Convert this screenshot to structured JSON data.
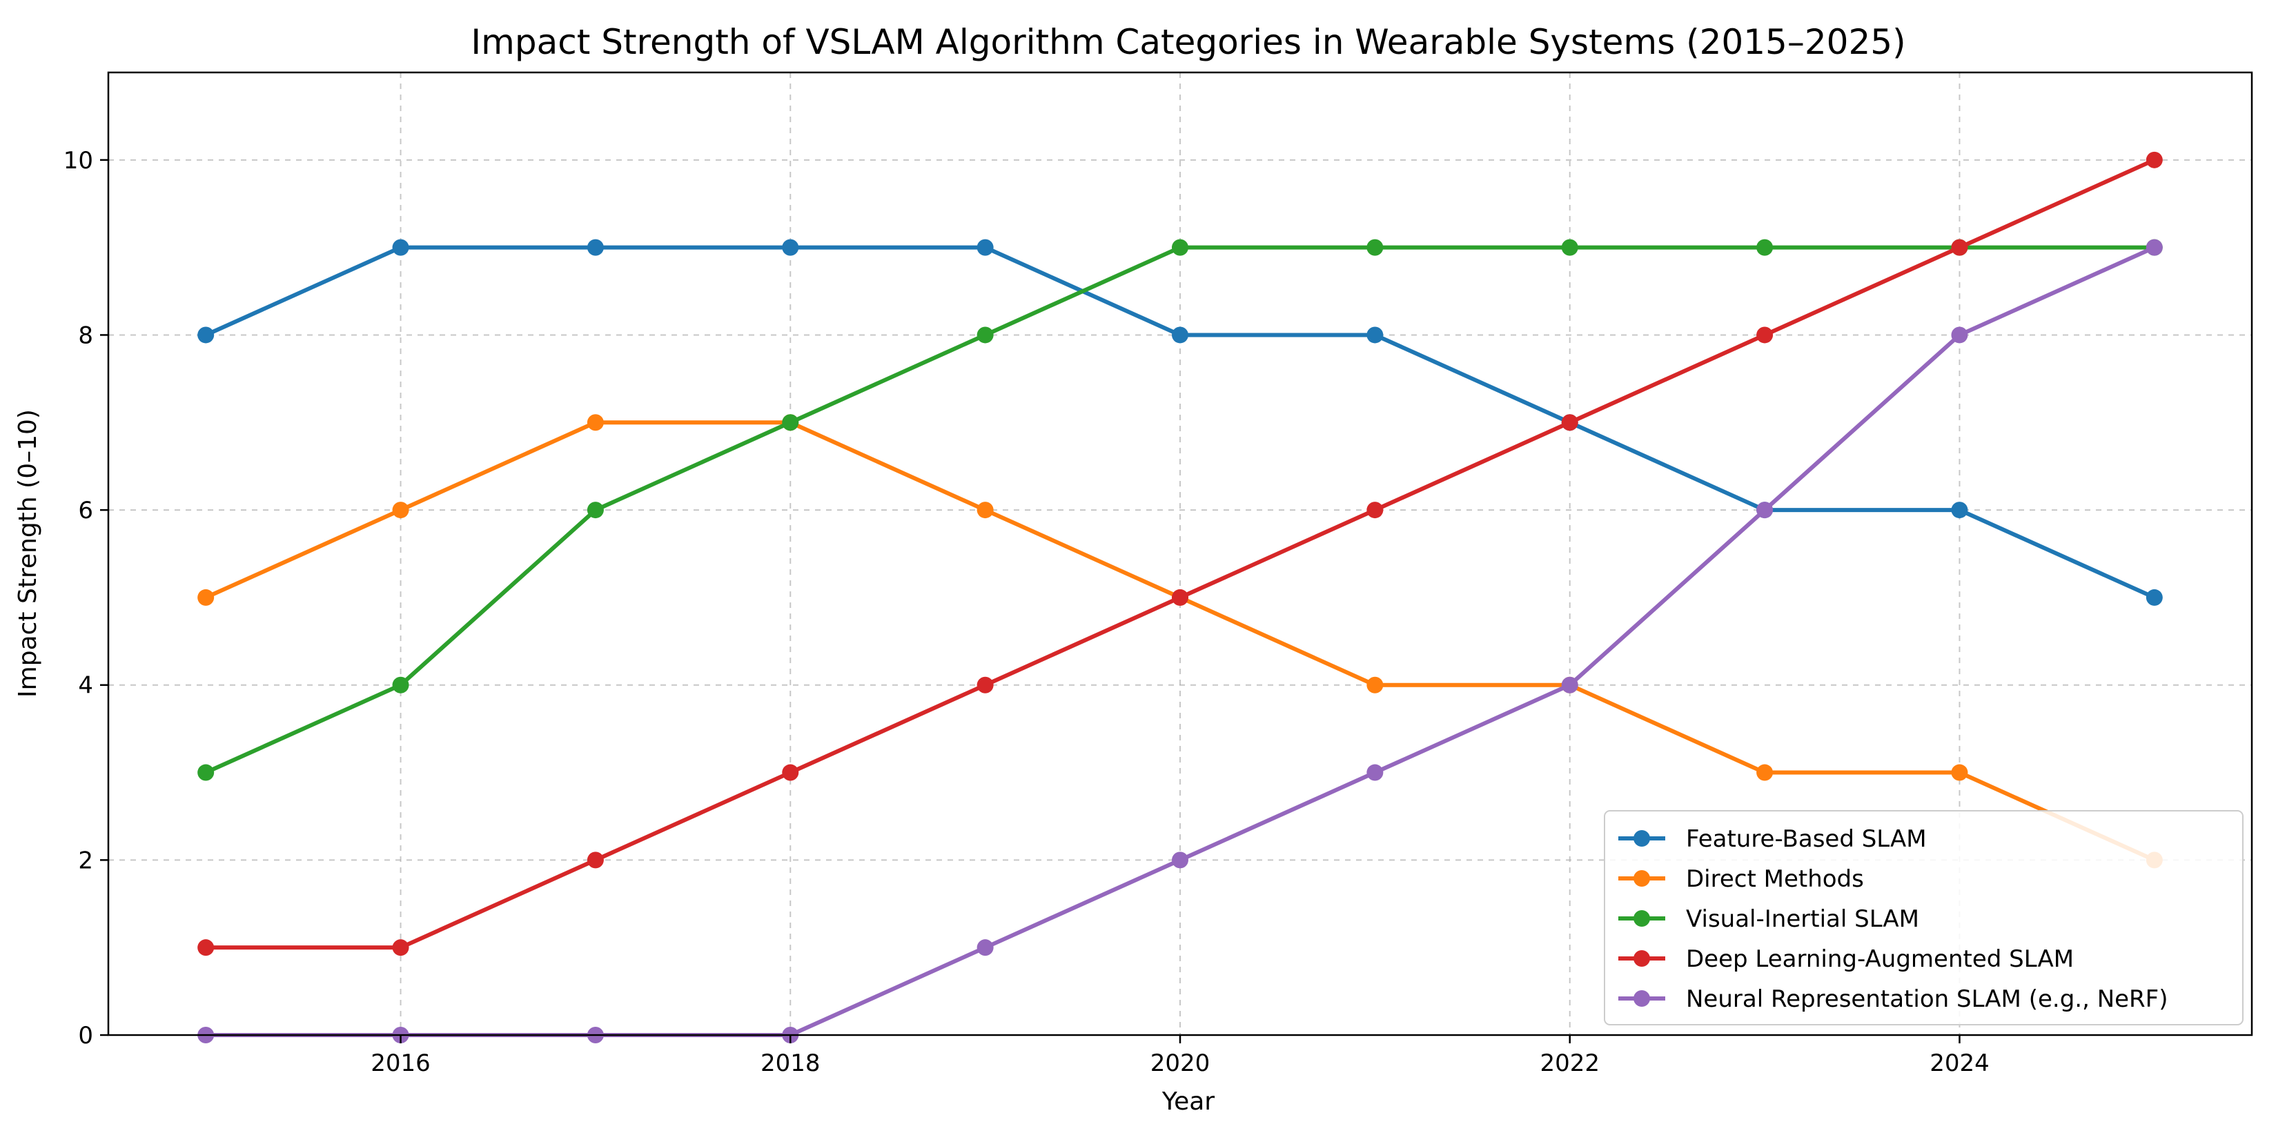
{
  "chart_data": {
    "type": "line",
    "title": "Impact Strength of VSLAM Algorithm Categories in Wearable Systems (2015–2025)",
    "xlabel": "Year",
    "ylabel": "Impact Strength (0–10)",
    "x": [
      2015,
      2016,
      2017,
      2018,
      2019,
      2020,
      2021,
      2022,
      2023,
      2024,
      2025
    ],
    "xlim": [
      2014.5,
      2025.5
    ],
    "ylim": [
      0,
      11
    ],
    "xticks": [
      2016,
      2018,
      2020,
      2022,
      2024
    ],
    "yticks": [
      0,
      2,
      4,
      6,
      8,
      10
    ],
    "grid": true,
    "legend_position": "lower-right",
    "series": [
      {
        "name": "Feature-Based SLAM",
        "color": "#1f77b4",
        "values": [
          8,
          9,
          9,
          9,
          9,
          8,
          8,
          7,
          6,
          6,
          5
        ]
      },
      {
        "name": "Direct Methods",
        "color": "#ff7f0e",
        "values": [
          5,
          6,
          7,
          7,
          6,
          5,
          4,
          4,
          3,
          3,
          2
        ]
      },
      {
        "name": "Visual-Inertial SLAM",
        "color": "#2ca02c",
        "values": [
          3,
          4,
          6,
          7,
          8,
          9,
          9,
          9,
          9,
          9,
          9
        ]
      },
      {
        "name": "Deep Learning-Augmented SLAM",
        "color": "#d62728",
        "values": [
          1,
          1,
          2,
          3,
          4,
          5,
          6,
          7,
          8,
          9,
          10
        ]
      },
      {
        "name": "Neural Representation SLAM (e.g., NeRF)",
        "color": "#9467bd",
        "values": [
          0,
          0,
          0,
          0,
          1,
          2,
          3,
          4,
          6,
          8,
          9
        ]
      }
    ]
  }
}
